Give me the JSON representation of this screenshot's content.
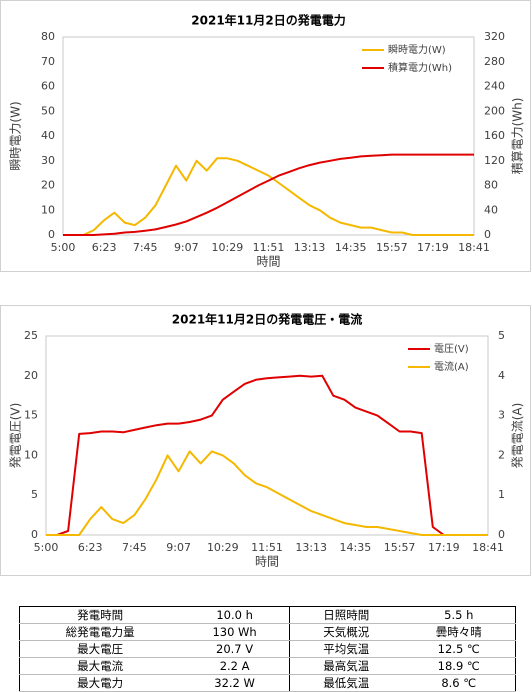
{
  "chart_data": [
    {
      "type": "line",
      "title": "2021年11月2日の発電電力",
      "xlabel": "時間",
      "ylabel": "瞬時電力(W)",
      "y2label": "積算電力(Wh)",
      "categories": [
        "5:00",
        null,
        null,
        null,
        "6:23",
        null,
        null,
        null,
        "7:45",
        null,
        null,
        null,
        "9:07",
        null,
        null,
        null,
        "10:29",
        null,
        null,
        null,
        "11:51",
        null,
        null,
        null,
        "13:13",
        null,
        null,
        null,
        "14:35",
        null,
        null,
        null,
        "15:57",
        null,
        null,
        null,
        "17:19",
        null,
        null,
        null,
        "18:41"
      ],
      "series": [
        {
          "name": "瞬時電力(W)",
          "color": "#f5b800",
          "values": [
            0,
            0,
            0,
            2,
            6,
            9,
            5,
            4,
            7,
            12,
            20,
            28,
            22,
            30,
            26,
            31,
            31,
            30,
            28,
            26,
            24,
            21,
            18,
            15,
            12,
            10,
            7,
            5,
            4,
            3,
            3,
            2,
            1,
            1,
            0,
            0,
            0,
            0,
            0,
            0,
            0
          ]
        },
        {
          "name": "積算電力(Wh)",
          "color": "#e00000",
          "axis": "y2",
          "values": [
            0,
            0,
            0,
            0,
            1,
            2,
            4,
            5,
            7,
            9,
            13,
            17,
            22,
            29,
            36,
            44,
            53,
            62,
            71,
            80,
            88,
            96,
            102,
            108,
            113,
            117,
            120,
            123,
            125,
            127,
            128,
            129,
            130,
            130,
            130,
            130,
            130,
            130,
            130,
            130,
            130
          ]
        }
      ],
      "ylim": [
        0,
        80
      ],
      "yticks": [
        0,
        10,
        20,
        30,
        40,
        50,
        60,
        70,
        80
      ],
      "y2lim": [
        0,
        320
      ],
      "y2ticks": [
        0,
        40,
        80,
        120,
        160,
        200,
        240,
        280,
        320
      ],
      "grid": false,
      "legend": "upper right"
    },
    {
      "type": "line",
      "title": "2021年11月2日の発電電圧・電流",
      "xlabel": "時間",
      "ylabel": "発電電圧(V)",
      "y2label": "発電電流(A)",
      "categories": [
        "5:00",
        null,
        null,
        null,
        "6:23",
        null,
        null,
        null,
        "7:45",
        null,
        null,
        null,
        "9:07",
        null,
        null,
        null,
        "10:29",
        null,
        null,
        null,
        "11:51",
        null,
        null,
        null,
        "13:13",
        null,
        null,
        null,
        "14:35",
        null,
        null,
        null,
        "15:57",
        null,
        null,
        null,
        "17:19",
        null,
        null,
        null,
        "18:41"
      ],
      "series": [
        {
          "name": "電圧(V)",
          "color": "#e00000",
          "values": [
            0,
            0,
            0.5,
            12.7,
            12.8,
            13,
            13,
            12.9,
            13.2,
            13.5,
            13.8,
            14,
            14,
            14.2,
            14.5,
            15,
            17,
            18,
            19,
            19.5,
            19.7,
            19.8,
            19.9,
            20,
            19.9,
            20,
            17.5,
            17,
            16,
            15.5,
            15,
            14,
            13,
            13,
            12.8,
            1,
            0,
            0,
            0,
            0,
            0
          ]
        },
        {
          "name": "電流(A)",
          "color": "#f5b800",
          "axis": "y2",
          "values": [
            0,
            0,
            0,
            0,
            0.4,
            0.7,
            0.4,
            0.3,
            0.5,
            0.9,
            1.4,
            2.0,
            1.6,
            2.1,
            1.8,
            2.1,
            2.0,
            1.8,
            1.5,
            1.3,
            1.2,
            1.05,
            0.9,
            0.75,
            0.6,
            0.5,
            0.4,
            0.3,
            0.25,
            0.2,
            0.2,
            0.15,
            0.1,
            0.05,
            0,
            0,
            0,
            0,
            0,
            0,
            0
          ]
        }
      ],
      "ylim": [
        0,
        25
      ],
      "yticks": [
        0,
        5,
        10,
        15,
        20,
        25
      ],
      "y2lim": [
        0,
        5
      ],
      "y2ticks": [
        0,
        1,
        2,
        3,
        4,
        5
      ],
      "grid": false,
      "legend": "upper right"
    }
  ],
  "table": {
    "rows": [
      [
        "発電時間",
        "10.0 h",
        "日照時間",
        "5.5 h"
      ],
      [
        "総発電電力量",
        "130 Wh",
        "天気概況",
        "曇時々晴"
      ],
      [
        "最大電圧",
        "20.7 V",
        "平均気温",
        "12.5 ℃"
      ],
      [
        "最大電流",
        "2.2 A",
        "最高気温",
        "18.9 ℃"
      ],
      [
        "最大電力",
        "32.2 W",
        "最低気温",
        "8.6 ℃"
      ]
    ]
  }
}
